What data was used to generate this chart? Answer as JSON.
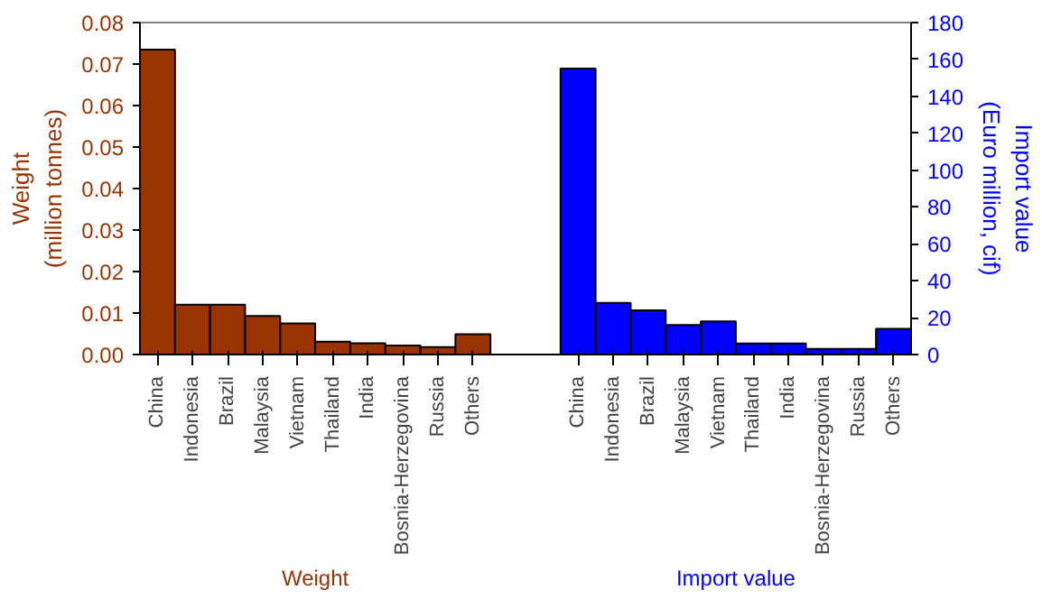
{
  "chart_data": {
    "type": "bar",
    "categories": [
      "China",
      "Indonesia",
      "Brazil",
      "Malaysia",
      "Vietnam",
      "Thailand",
      "India",
      "Bosnia-Herzegovina",
      "Russia",
      "Others",
      null,
      null,
      "China",
      "Indonesia",
      "Brazil",
      "Malaysia",
      "Vietnam",
      "Thailand",
      "India",
      "Bosnia-Herzegovina",
      "Russia",
      "Others"
    ],
    "series": [
      {
        "color": "#993300",
        "values": [
          0.0735,
          0.012,
          0.012,
          0.0093,
          0.0075,
          0.0031,
          0.0027,
          0.0022,
          0.0018,
          0.0049,
          null,
          null,
          null,
          null,
          null,
          null,
          null,
          null,
          null,
          null,
          null,
          null
        ]
      },
      {
        "color": "#0000ff",
        "axis": "y2",
        "values": [
          null,
          null,
          null,
          null,
          null,
          null,
          null,
          null,
          null,
          null,
          null,
          null,
          155,
          28,
          24,
          16,
          18,
          6,
          6,
          3,
          3,
          14
        ]
      }
    ],
    "ylabel": "Weight\n(million tonnes)",
    "y2label": "Import value\n(Euro million, cif)",
    "ylim": [
      0,
      0.08
    ],
    "yticks": [
      {
        "value": 0,
        "label": "0.00"
      },
      {
        "value": 0.01,
        "label": "0.01"
      },
      {
        "value": 0.02,
        "label": "0.02"
      },
      {
        "value": 0.03,
        "label": "0.03"
      },
      {
        "value": 0.04,
        "label": "0.04"
      },
      {
        "value": 0.05,
        "label": "0.05"
      },
      {
        "value": 0.06,
        "label": "0.06"
      },
      {
        "value": 0.07,
        "label": "0.07"
      },
      {
        "value": 0.08,
        "label": "0.08"
      }
    ],
    "y2lim": [
      0,
      180
    ],
    "y2ticks": [
      0,
      20,
      40,
      60,
      80,
      100,
      120,
      140,
      160,
      180
    ],
    "annotations": [
      "Weight",
      "Import value"
    ],
    "grid": false
  }
}
